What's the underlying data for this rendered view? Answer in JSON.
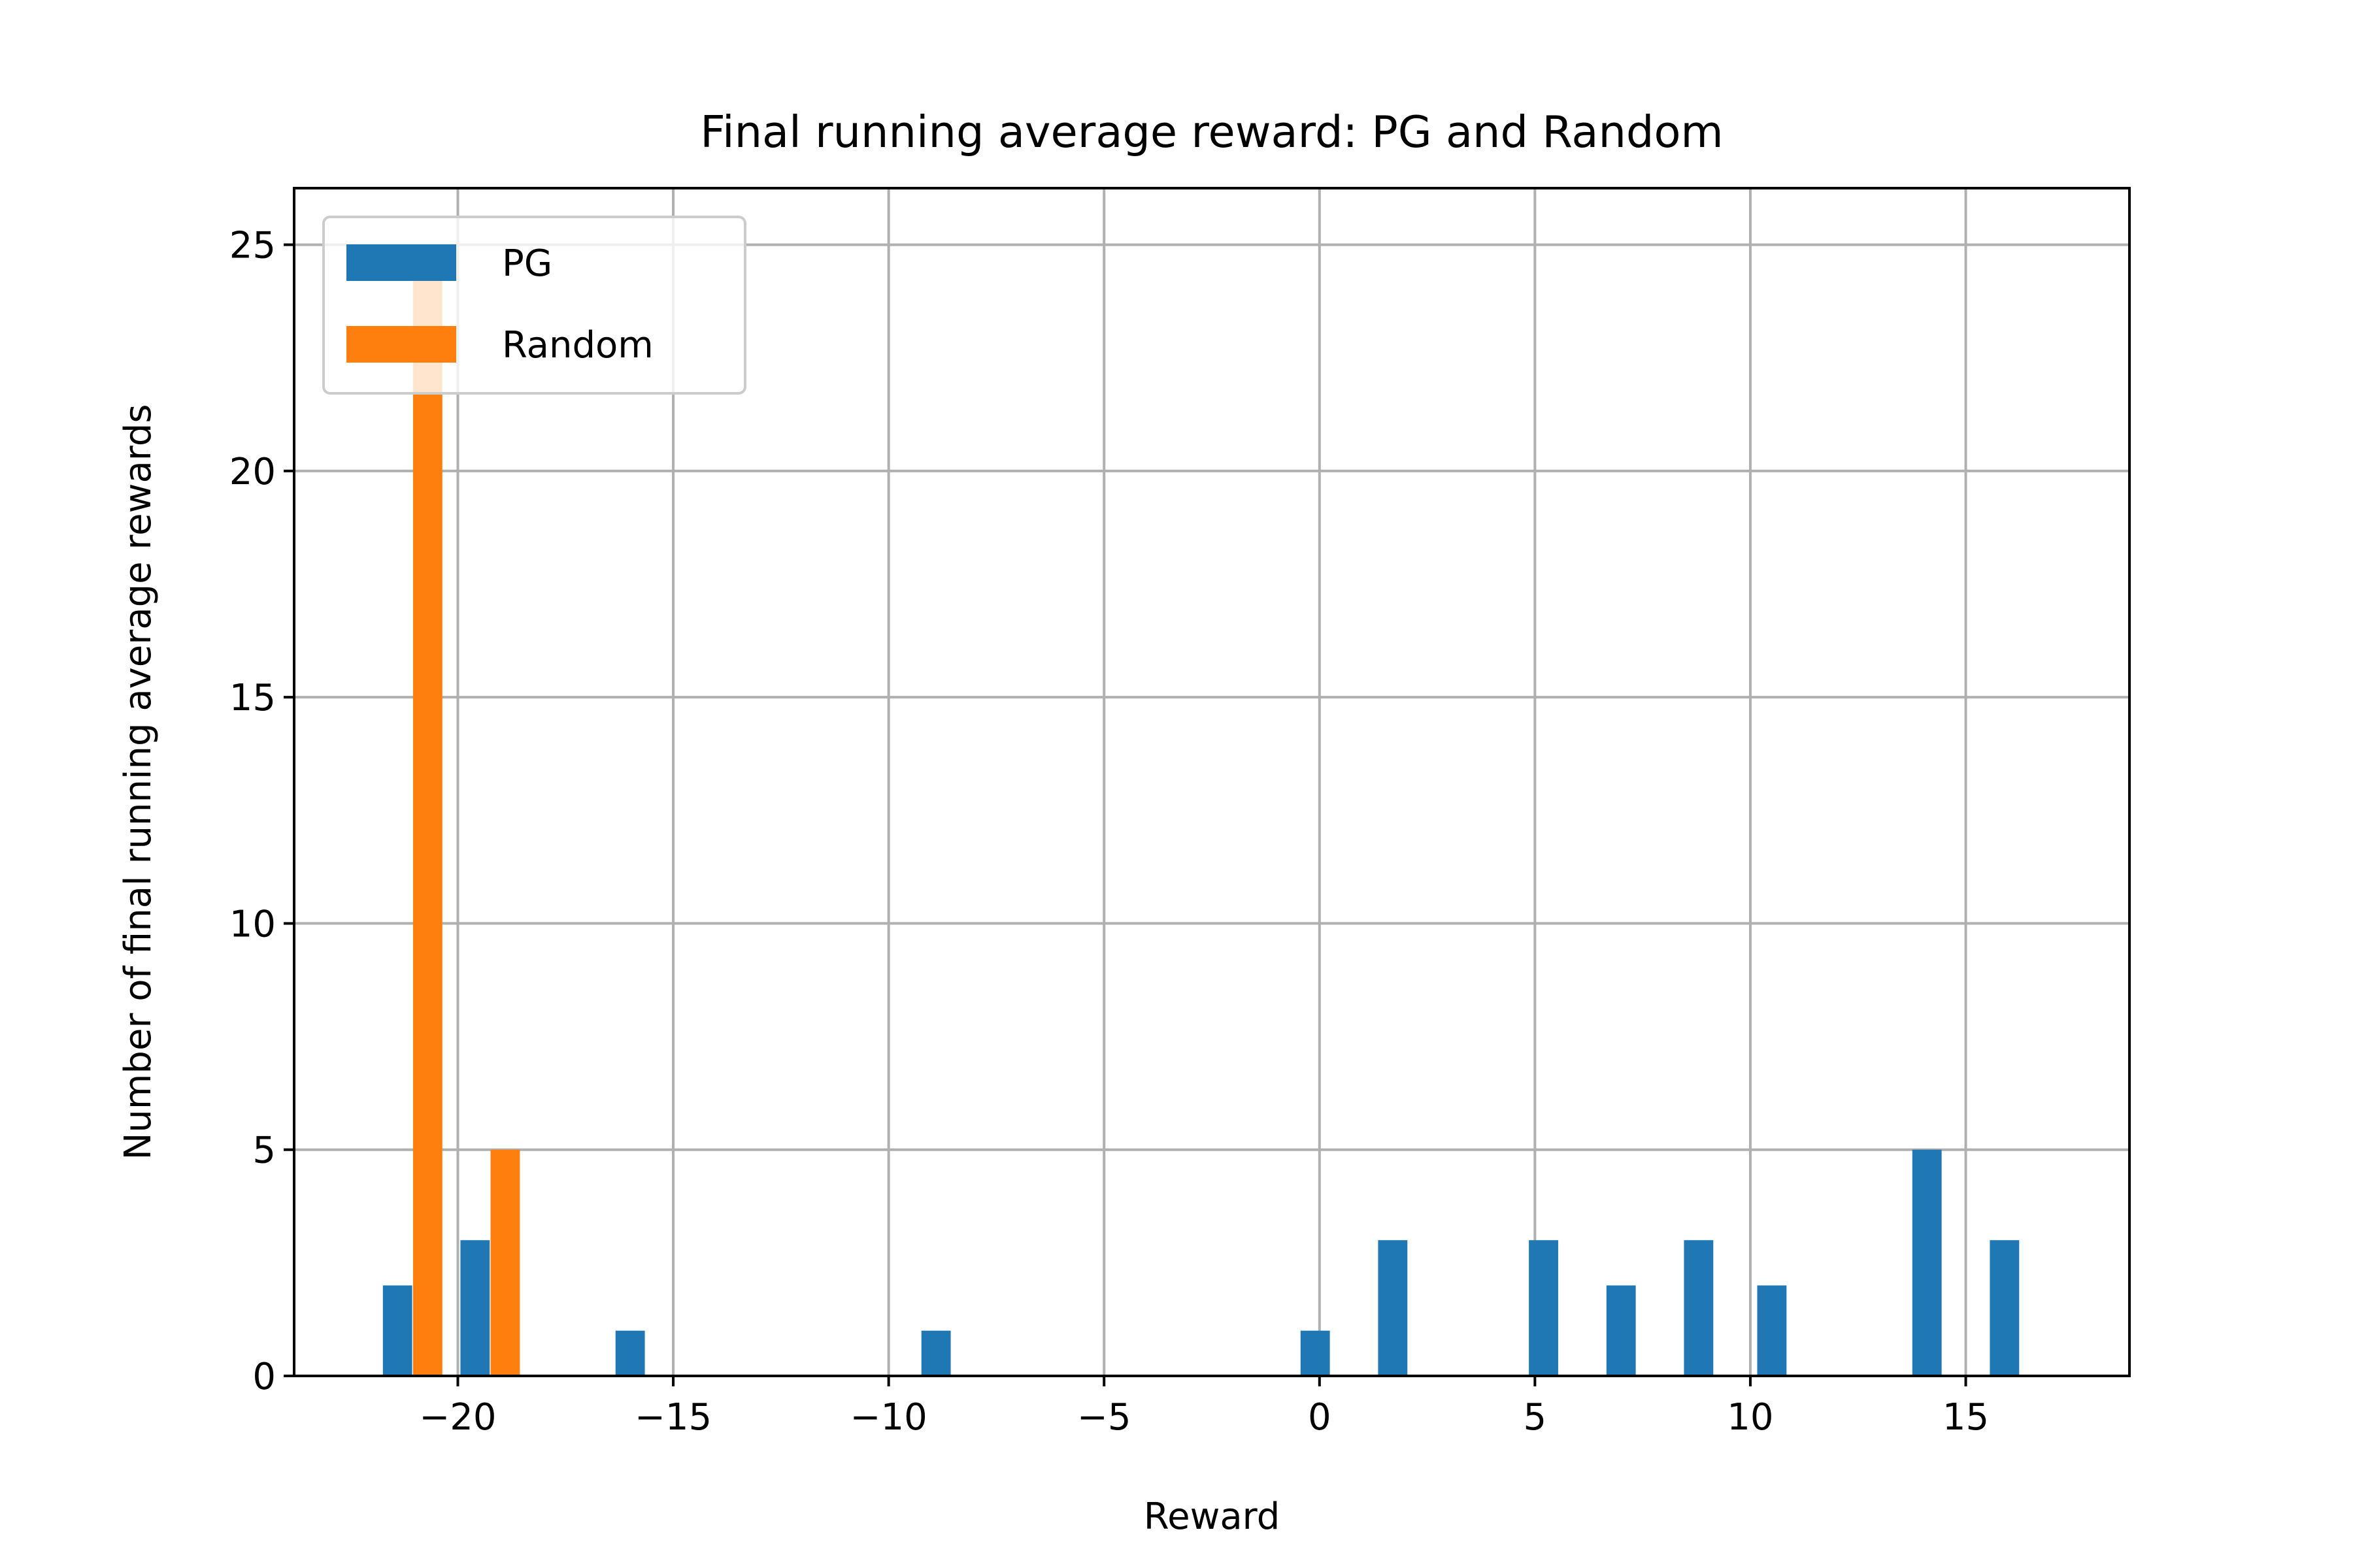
{
  "chart_data": {
    "type": "bar",
    "title": "Final running average reward: PG and Random",
    "xlabel": "Reward",
    "ylabel": "Number of final running average rewards",
    "xlim": [
      -23.8,
      18.8
    ],
    "ylim": [
      0,
      26.25
    ],
    "xticks": [
      -20,
      -15,
      -10,
      -5,
      0,
      5,
      10,
      15
    ],
    "xtick_labels": [
      "−20",
      "−15",
      "−10",
      "−5",
      "0",
      "5",
      "10",
      "15"
    ],
    "yticks": [
      0,
      5,
      10,
      15,
      20,
      25
    ],
    "ytick_labels": [
      "0",
      "5",
      "10",
      "15",
      "20",
      "25"
    ],
    "grid": true,
    "legend_position": "upper-left",
    "bar_width": 0.68,
    "series": [
      {
        "name": "PG",
        "color": "#1f77b4",
        "x": [
          -21.4,
          -19.6,
          -16.0,
          -8.9,
          -0.1,
          1.7,
          5.2,
          7.0,
          8.8,
          10.5,
          14.1,
          15.9
        ],
        "values": [
          2,
          3,
          1,
          1,
          1,
          3,
          3,
          2,
          3,
          2,
          5,
          3
        ]
      },
      {
        "name": "Random",
        "color": "#ff7f0e",
        "x": [
          -20.7,
          -18.9
        ],
        "values": [
          25,
          5
        ]
      }
    ]
  }
}
